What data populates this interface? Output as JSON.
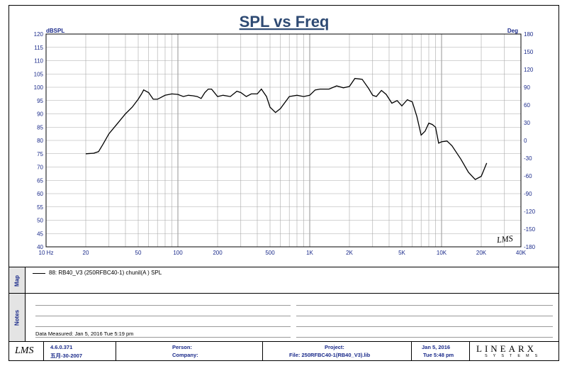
{
  "chart_data": {
    "type": "line",
    "title": "SPL vs Freq",
    "xscale": "log",
    "xlim": [
      10,
      40000
    ],
    "ylim": [
      40,
      120
    ],
    "y2lim": [
      -180,
      180
    ],
    "ylabel": "dBSPL",
    "y2label": "Deg",
    "grid": true,
    "x_tick_labels": [
      "10 Hz",
      "20",
      "50",
      "100",
      "200",
      "500",
      "1K",
      "2K",
      "5K",
      "10K",
      "20K",
      "40K"
    ],
    "x_tick_values": [
      10,
      20,
      50,
      100,
      200,
      500,
      1000,
      2000,
      5000,
      10000,
      20000,
      40000
    ],
    "y_ticks": [
      40,
      45,
      50,
      55,
      60,
      65,
      70,
      75,
      80,
      85,
      90,
      95,
      100,
      105,
      110,
      115,
      120
    ],
    "y2_ticks": [
      -180,
      -150,
      -120,
      -90,
      -60,
      -30,
      0,
      30,
      60,
      90,
      120,
      150,
      180
    ],
    "series": [
      {
        "name": "88: RB40_V3 (250RFBC40-1) chunil(A ) SPL",
        "color": "#000000",
        "x": [
          20,
          23,
          25,
          27,
          30,
          35,
          40,
          45,
          50,
          53,
          55,
          60,
          65,
          70,
          80,
          90,
          100,
          110,
          120,
          130,
          140,
          150,
          160,
          170,
          180,
          200,
          220,
          250,
          280,
          300,
          330,
          360,
          400,
          430,
          470,
          500,
          550,
          600,
          700,
          800,
          900,
          1000,
          1100,
          1200,
          1400,
          1600,
          1800,
          2000,
          2200,
          2500,
          2800,
          3000,
          3200,
          3500,
          3800,
          4200,
          4600,
          5000,
          5500,
          6000,
          6500,
          7000,
          7500,
          8000,
          8500,
          9000,
          9500,
          10000,
          11000,
          12000,
          14000,
          16000,
          18000,
          20000,
          22000
        ],
        "values": [
          75,
          75.2,
          75.8,
          78.5,
          82.5,
          86.5,
          90,
          92.5,
          95.5,
          97.5,
          99,
          98,
          95.5,
          95.5,
          97,
          97.5,
          97.3,
          96.5,
          97,
          96.8,
          96.5,
          95.8,
          98,
          99.3,
          99.3,
          96.5,
          97,
          96.5,
          98.5,
          98,
          96.5,
          97.5,
          97.5,
          99.3,
          96.5,
          92.5,
          90.5,
          92,
          96.5,
          97,
          96.5,
          97,
          99,
          99.3,
          99.3,
          100.5,
          99.8,
          100.3,
          103.3,
          103,
          99.5,
          97,
          96.5,
          98.8,
          97.3,
          94,
          95,
          93,
          95.3,
          94.5,
          89,
          82,
          83.5,
          86.5,
          86,
          85,
          79,
          79.5,
          79.8,
          78,
          73,
          68,
          65.3,
          66.5,
          71.5
        ]
      }
    ]
  },
  "header": {
    "y_unit": "dBSPL",
    "y2_unit": "Deg",
    "watermark": "LMS"
  },
  "map_panel": {
    "label": "Map",
    "legend": "88: RB40_V3 (250RFBC40-1) chunil(A ) SPL"
  },
  "notes_panel": {
    "label": "Notes",
    "measured": "Data Measured: Jan 5, 2016  Tue  5:19 pm"
  },
  "footer": {
    "logo": "LMS",
    "version": "4.6.0.371",
    "version_date": "五月-30-2007",
    "person_label": "Person:",
    "company_label": "Company:",
    "project_label": "Project:",
    "file_label": "File: 250RFBC40-1(RB40_V3).lib",
    "date": "Jan 5, 2016",
    "time": "Tue  5:48 pm",
    "brand": "LINEARX",
    "brand_sub": "SYSTEMS"
  }
}
